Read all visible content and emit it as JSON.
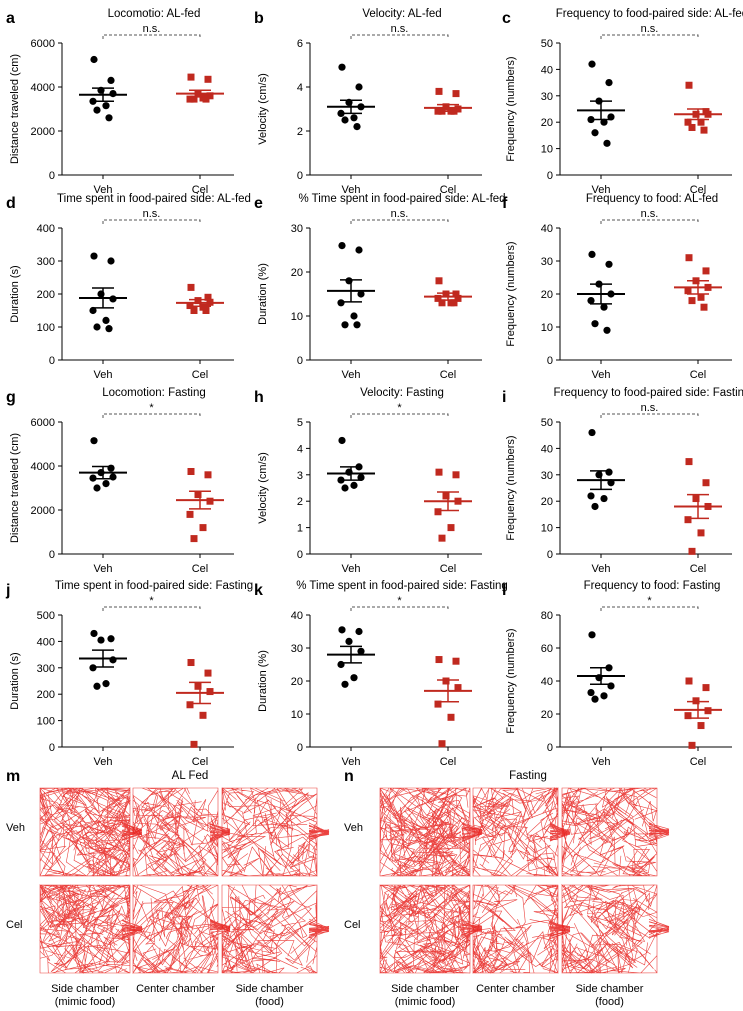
{
  "chart_data": [
    {
      "type": "strip",
      "panel": "a",
      "title": "Locomotio: AL-fed",
      "ylabel": "Distance traveled (cm)",
      "categories": [
        "Veh",
        "Cel"
      ],
      "significance": "n.s.",
      "ylim": [
        0,
        6000
      ],
      "yticks": [
        0,
        2000,
        4000,
        6000
      ],
      "series": [
        {
          "color": "#000000",
          "marker": "circle",
          "values": [
            5250,
            4300,
            3850,
            3700,
            3350,
            3150,
            2950,
            2600
          ],
          "mean": 3650,
          "sem": 300
        },
        {
          "color": "#c0291f",
          "marker": "square",
          "values": [
            4450,
            4350,
            3700,
            3600,
            3450,
            3500,
            3450,
            3450
          ],
          "mean": 3700,
          "sem": 150
        }
      ]
    },
    {
      "type": "strip",
      "panel": "b",
      "title": "Velocity: AL-fed",
      "ylabel": "Velocity (cm/s)",
      "categories": [
        "Veh",
        "Cel"
      ],
      "significance": "n.s.",
      "ylim": [
        0,
        6
      ],
      "yticks": [
        0,
        2,
        4,
        6
      ],
      "series": [
        {
          "color": "#000000",
          "marker": "circle",
          "values": [
            4.9,
            4.0,
            3.3,
            3.1,
            2.8,
            2.6,
            2.5,
            2.2
          ],
          "mean": 3.1,
          "sem": 0.3
        },
        {
          "color": "#c0291f",
          "marker": "square",
          "values": [
            3.8,
            3.7,
            3.1,
            3.0,
            2.9,
            2.9,
            2.9,
            2.9
          ],
          "mean": 3.05,
          "sem": 0.15
        }
      ]
    },
    {
      "type": "strip",
      "panel": "c",
      "title": "Frequency to food-paired side: AL-fed",
      "ylabel": "Frequency (numbers)",
      "categories": [
        "Veh",
        "Cel"
      ],
      "significance": "n.s.",
      "ylim": [
        0,
        50
      ],
      "yticks": [
        0,
        10,
        20,
        30,
        40,
        50
      ],
      "series": [
        {
          "color": "#000000",
          "marker": "circle",
          "values": [
            42,
            35,
            28,
            22,
            21,
            20,
            16,
            12
          ],
          "mean": 24.5,
          "sem": 3.5
        },
        {
          "color": "#c0291f",
          "marker": "square",
          "values": [
            34,
            24,
            23,
            23,
            20,
            20,
            18,
            17
          ],
          "mean": 23,
          "sem": 2
        }
      ]
    },
    {
      "type": "strip",
      "panel": "d",
      "title": "Time spent in food-paired side: AL-fed",
      "ylabel": "Duration (s)",
      "categories": [
        "Veh",
        "Cel"
      ],
      "significance": "n.s.",
      "ylim": [
        0,
        400
      ],
      "yticks": [
        0,
        100,
        200,
        300,
        400
      ],
      "series": [
        {
          "color": "#000000",
          "marker": "circle",
          "values": [
            315,
            300,
            200,
            185,
            150,
            120,
            100,
            95
          ],
          "mean": 188,
          "sem": 30
        },
        {
          "color": "#c0291f",
          "marker": "square",
          "values": [
            220,
            190,
            180,
            175,
            165,
            160,
            150,
            150
          ],
          "mean": 173,
          "sem": 10
        }
      ]
    },
    {
      "type": "strip",
      "panel": "e",
      "title": "% Time spent in food-paired side: AL-fed",
      "ylabel": "Duration (%)",
      "categories": [
        "Veh",
        "Cel"
      ],
      "significance": "n.s.",
      "ylim": [
        0,
        30
      ],
      "yticks": [
        0,
        10,
        20,
        30
      ],
      "series": [
        {
          "color": "#000000",
          "marker": "circle",
          "values": [
            26,
            25,
            18,
            15,
            13,
            10,
            8,
            8
          ],
          "mean": 15.7,
          "sem": 2.5
        },
        {
          "color": "#c0291f",
          "marker": "square",
          "values": [
            18,
            15,
            15,
            14,
            14,
            13,
            13,
            13
          ],
          "mean": 14.4,
          "sem": 0.8
        }
      ]
    },
    {
      "type": "strip",
      "panel": "f",
      "title": "Frequency to food: AL-fed",
      "ylabel": "Frequency (numbers)",
      "categories": [
        "Veh",
        "Cel"
      ],
      "significance": "n.s.",
      "ylim": [
        0,
        40
      ],
      "yticks": [
        0,
        10,
        20,
        30,
        40
      ],
      "series": [
        {
          "color": "#000000",
          "marker": "circle",
          "values": [
            32,
            29,
            23,
            20,
            18,
            16,
            11,
            9
          ],
          "mean": 20,
          "sem": 3
        },
        {
          "color": "#c0291f",
          "marker": "square",
          "values": [
            31,
            27,
            24,
            22,
            21,
            19,
            18,
            16
          ],
          "mean": 22,
          "sem": 2
        }
      ]
    },
    {
      "type": "strip",
      "panel": "g",
      "title": "Locomotion: Fasting",
      "ylabel": "Distance traveled (cm)",
      "categories": [
        "Veh",
        "Cel"
      ],
      "significance": "*",
      "ylim": [
        0,
        6000
      ],
      "yticks": [
        0,
        2000,
        4000,
        6000
      ],
      "series": [
        {
          "color": "#000000",
          "marker": "circle",
          "values": [
            5150,
            3900,
            3700,
            3500,
            3450,
            3200,
            3000
          ],
          "mean": 3700,
          "sem": 280
        },
        {
          "color": "#c0291f",
          "marker": "square",
          "values": [
            3750,
            3600,
            2700,
            2400,
            1800,
            1200,
            700
          ],
          "mean": 2450,
          "sem": 400
        }
      ]
    },
    {
      "type": "strip",
      "panel": "h",
      "title": "Velocity: Fasting",
      "ylabel": "Velocity (cm/s)",
      "categories": [
        "Veh",
        "Cel"
      ],
      "significance": "*",
      "ylim": [
        0,
        5
      ],
      "yticks": [
        0,
        1,
        2,
        3,
        4,
        5
      ],
      "series": [
        {
          "color": "#000000",
          "marker": "circle",
          "values": [
            4.3,
            3.3,
            3.1,
            2.9,
            2.8,
            2.6,
            2.5
          ],
          "mean": 3.05,
          "sem": 0.25
        },
        {
          "color": "#c0291f",
          "marker": "square",
          "values": [
            3.1,
            3.0,
            2.2,
            2.0,
            1.6,
            1.0,
            0.6
          ],
          "mean": 2.0,
          "sem": 0.35
        }
      ]
    },
    {
      "type": "strip",
      "panel": "i",
      "title": "Frequency to food-paired side: Fasting",
      "ylabel": "Frequency (numbers)",
      "categories": [
        "Veh",
        "Cel"
      ],
      "significance": "n.s.",
      "ylim": [
        0,
        50
      ],
      "yticks": [
        0,
        10,
        20,
        30,
        40,
        50
      ],
      "series": [
        {
          "color": "#000000",
          "marker": "circle",
          "values": [
            46,
            31,
            30,
            27,
            22,
            21,
            18
          ],
          "mean": 28,
          "sem": 3.5
        },
        {
          "color": "#c0291f",
          "marker": "square",
          "values": [
            35,
            27,
            21,
            18,
            13,
            8,
            1
          ],
          "mean": 18,
          "sem": 4.5
        }
      ]
    },
    {
      "type": "strip",
      "panel": "j",
      "title": "Time spent in food-paired side: Fasting",
      "ylabel": "Duration (s)",
      "categories": [
        "Veh",
        "Cel"
      ],
      "significance": "*",
      "ylim": [
        0,
        500
      ],
      "yticks": [
        0,
        100,
        200,
        300,
        400,
        500
      ],
      "series": [
        {
          "color": "#000000",
          "marker": "circle",
          "values": [
            430,
            410,
            405,
            330,
            300,
            240,
            230
          ],
          "mean": 335,
          "sem": 32
        },
        {
          "color": "#c0291f",
          "marker": "square",
          "values": [
            320,
            280,
            230,
            210,
            160,
            120,
            10
          ],
          "mean": 205,
          "sem": 40
        }
      ]
    },
    {
      "type": "strip",
      "panel": "k",
      "title": "% Time spent in food-paired side: Fasting",
      "ylabel": "Duration (%)",
      "categories": [
        "Veh",
        "Cel"
      ],
      "significance": "*",
      "ylim": [
        0,
        40
      ],
      "yticks": [
        0,
        10,
        20,
        30,
        40
      ],
      "series": [
        {
          "color": "#000000",
          "marker": "circle",
          "values": [
            35.5,
            35,
            32,
            29,
            25,
            21,
            19
          ],
          "mean": 28,
          "sem": 2.5
        },
        {
          "color": "#c0291f",
          "marker": "square",
          "values": [
            26.5,
            26,
            20,
            18,
            13,
            9,
            1
          ],
          "mean": 17,
          "sem": 3.3
        }
      ]
    },
    {
      "type": "strip",
      "panel": "l",
      "title": "Frequency to food: Fasting",
      "ylabel": "Frequency (numbers)",
      "categories": [
        "Veh",
        "Cel"
      ],
      "significance": "*",
      "ylim": [
        0,
        80
      ],
      "yticks": [
        0,
        20,
        40,
        60,
        80
      ],
      "series": [
        {
          "color": "#000000",
          "marker": "circle",
          "values": [
            68,
            48,
            42,
            37,
            33,
            31,
            29
          ],
          "mean": 43,
          "sem": 5
        },
        {
          "color": "#c0291f",
          "marker": "square",
          "values": [
            40,
            36,
            28,
            22,
            19,
            13,
            1
          ],
          "mean": 22.5,
          "sem": 5
        }
      ]
    }
  ],
  "trajectories": {
    "panels": [
      {
        "letter": "m",
        "title": "AL Fed"
      },
      {
        "letter": "n",
        "title": "Fasting"
      }
    ],
    "rows": [
      "Veh",
      "Cel"
    ],
    "chambers": [
      [
        "Side chamber",
        "(mimic food)"
      ],
      [
        "Center chamber"
      ],
      [
        "Side chamber",
        "(food)"
      ]
    ]
  }
}
